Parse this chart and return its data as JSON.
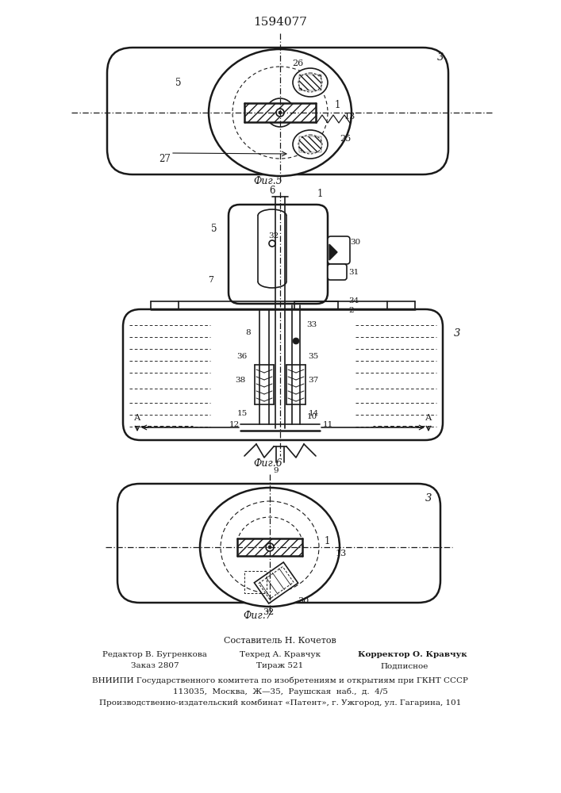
{
  "title": "1594077",
  "bg_color": "#ffffff",
  "line_color": "#1a1a1a",
  "fig5_caption": "Фиг.5",
  "fig6_caption": "Фиг.6",
  "fig7_caption": "Фиг.7",
  "footer_lines": [
    "Составитель Н. Кочетов",
    "Редактор В. Бугренкова",
    "Техред А. Кравчук",
    "Корректор О. Кравчук",
    "Заказ 2807",
    "Тираж 521",
    "Подписное",
    "ВНИИПИ Государственного комитета по изобретениям и открытиям при ГКНТ СССР",
    "113035,  Москва,  Ж—35,  Раушская  наб.,  д.  4/5",
    "Производственно-издательский комбинат «Патент», г. Ужгород, ул. Гагарина, 101"
  ]
}
